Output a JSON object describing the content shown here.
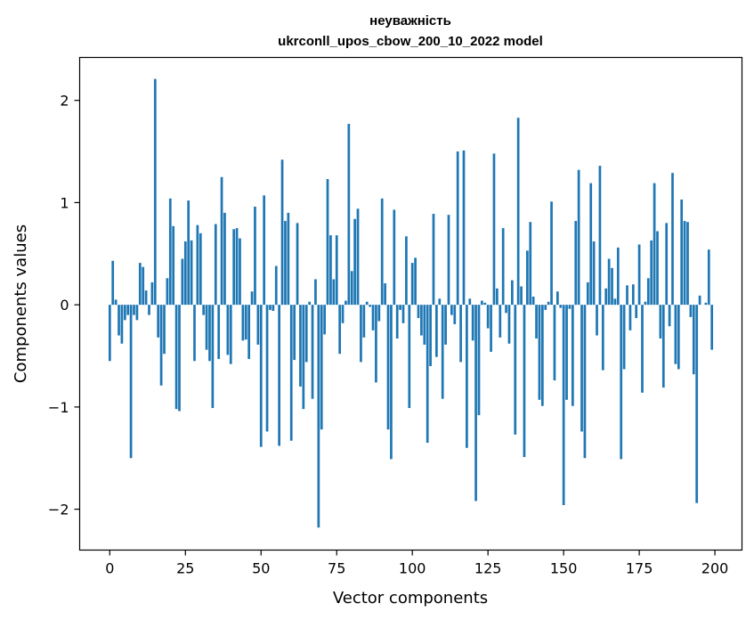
{
  "chart_data": {
    "type": "bar",
    "title_line1": "неуважність",
    "title_line2": "ukrconll_upos_cbow_200_10_2022 model",
    "xlabel": "Vector components",
    "ylabel": "Components values",
    "xlim": [
      -9.95,
      208.95
    ],
    "ylim": [
      -2.4,
      2.42
    ],
    "xticks": [
      0,
      25,
      50,
      75,
      100,
      125,
      150,
      175,
      200
    ],
    "yticks": [
      -2,
      -1,
      0,
      1,
      2
    ],
    "ytick_labels": [
      "−2",
      "−1",
      "0",
      "1",
      "2"
    ],
    "bar_color": "#1f77b4",
    "grid": false,
    "legend": "none",
    "values": [
      -0.55,
      0.43,
      0.05,
      -0.3,
      -0.38,
      -0.15,
      -0.1,
      -1.5,
      -0.1,
      -0.15,
      0.41,
      0.37,
      0.14,
      -0.1,
      0.22,
      2.21,
      -0.32,
      -0.79,
      -0.48,
      0.26,
      1.04,
      0.77,
      -1.02,
      -1.04,
      0.45,
      0.62,
      1.02,
      0.63,
      -0.55,
      0.78,
      0.7,
      -0.1,
      -0.44,
      -0.55,
      -1.01,
      0.79,
      -0.53,
      1.25,
      0.9,
      -0.49,
      -0.58,
      0.74,
      0.75,
      0.65,
      -0.35,
      -0.34,
      -0.53,
      0.13,
      0.96,
      -0.39,
      -1.39,
      1.07,
      -1.24,
      -0.05,
      -0.06,
      0.38,
      -1.38,
      1.42,
      0.82,
      0.9,
      -1.33,
      -0.54,
      0.8,
      -0.8,
      -1.02,
      -0.56,
      0.03,
      -0.92,
      0.25,
      -2.18,
      -1.22,
      -0.29,
      1.23,
      0.68,
      0.25,
      0.68,
      -0.48,
      -0.18,
      0.04,
      1.77,
      0.33,
      0.84,
      0.94,
      -0.56,
      -0.32,
      0.03,
      -0.02,
      -0.25,
      -0.76,
      -0.16,
      1.04,
      0.21,
      -1.22,
      -1.51,
      0.93,
      -0.33,
      -0.05,
      -0.18,
      0.67,
      -1.01,
      0.41,
      0.46,
      -0.13,
      -0.3,
      -0.39,
      -1.35,
      -0.6,
      0.89,
      -0.51,
      0.06,
      -0.92,
      -0.39,
      0.88,
      -0.1,
      -0.19,
      1.5,
      -0.56,
      1.51,
      -1.4,
      0.06,
      -0.35,
      -1.92,
      -1.08,
      0.04,
      0.02,
      -0.23,
      -0.46,
      1.48,
      0.16,
      -0.32,
      0.75,
      -0.08,
      -0.38,
      0.24,
      -1.27,
      1.83,
      0.18,
      -1.49,
      0.53,
      0.81,
      0.08,
      -0.33,
      -0.93,
      -0.99,
      -0.05,
      0.03,
      1.01,
      -0.74,
      0.13,
      -0.03,
      -1.96,
      -0.93,
      -0.04,
      -0.99,
      0.82,
      1.32,
      -1.24,
      -1.5,
      0.22,
      1.19,
      0.62,
      -0.3,
      1.36,
      -0.64,
      0.16,
      0.45,
      0.36,
      0.06,
      0.56,
      -1.51,
      -0.63,
      0.19,
      -0.25,
      0.2,
      -0.13,
      0.59,
      -0.86,
      0.03,
      0.26,
      0.63,
      1.19,
      0.72,
      -0.33,
      -0.81,
      0.8,
      -0.21,
      1.29,
      -0.58,
      -0.63,
      1.03,
      0.82,
      0.81,
      -0.12,
      -0.68,
      -1.94,
      0.09,
      0.0,
      0.02,
      0.54,
      -0.44
    ]
  }
}
